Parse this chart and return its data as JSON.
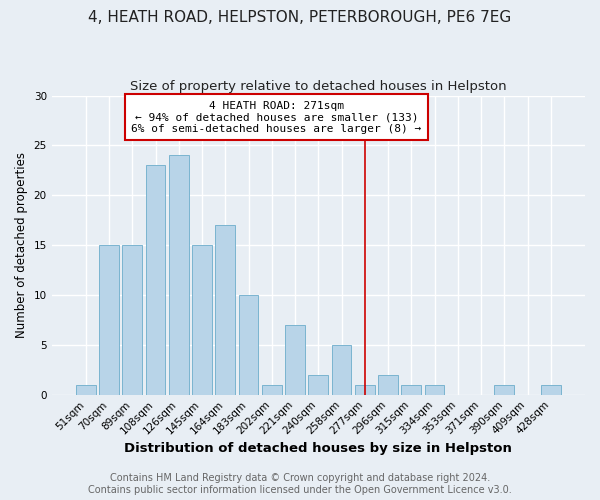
{
  "title_line1": "4, HEATH ROAD, HELPSTON, PETERBOROUGH, PE6 7EG",
  "title_line2": "Size of property relative to detached houses in Helpston",
  "xlabel": "Distribution of detached houses by size in Helpston",
  "ylabel": "Number of detached properties",
  "bar_values": [
    1,
    15,
    15,
    23,
    24,
    15,
    17,
    10,
    1,
    7,
    2,
    5,
    1,
    2,
    1,
    1,
    0,
    0,
    1,
    0,
    1
  ],
  "bar_labels": [
    "51sqm",
    "70sqm",
    "89sqm",
    "108sqm",
    "126sqm",
    "145sqm",
    "164sqm",
    "183sqm",
    "202sqm",
    "221sqm",
    "240sqm",
    "258sqm",
    "277sqm",
    "296sqm",
    "315sqm",
    "334sqm",
    "353sqm",
    "371sqm",
    "390sqm",
    "409sqm",
    "428sqm"
  ],
  "bar_color": "#b8d4e8",
  "bar_edgecolor": "#7ab4d0",
  "ylim": [
    0,
    30
  ],
  "yticks": [
    0,
    5,
    10,
    15,
    20,
    25,
    30
  ],
  "vline_index": 12,
  "vline_color": "#cc0000",
  "annotation_title": "4 HEATH ROAD: 271sqm",
  "annotation_line1": "← 94% of detached houses are smaller (133)",
  "annotation_line2": "6% of semi-detached houses are larger (8) →",
  "annotation_box_edgecolor": "#cc0000",
  "annotation_box_facecolor": "#ffffff",
  "footer_line1": "Contains HM Land Registry data © Crown copyright and database right 2024.",
  "footer_line2": "Contains public sector information licensed under the Open Government Licence v3.0.",
  "background_color": "#e8eef4",
  "grid_color": "#ffffff",
  "title1_fontsize": 11,
  "title2_fontsize": 9.5,
  "xlabel_fontsize": 9.5,
  "ylabel_fontsize": 8.5,
  "tick_fontsize": 7.5,
  "annotation_fontsize": 8,
  "footer_fontsize": 7
}
